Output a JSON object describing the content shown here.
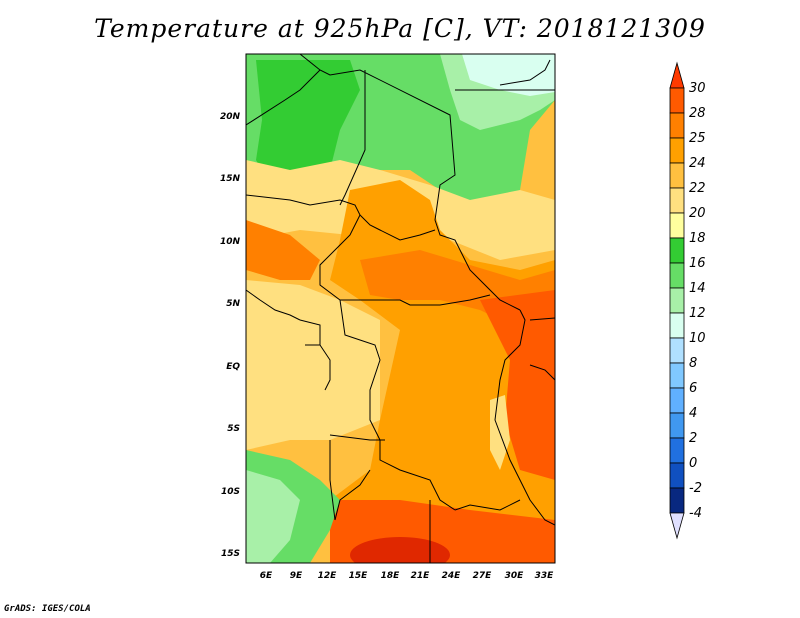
{
  "title": "Temperature at 925hPa [C], VT: 2018121309",
  "credit": "GrADS: IGES/COLA",
  "map": {
    "lon_labels": [
      "6E",
      "9E",
      "12E",
      "15E",
      "18E",
      "21E",
      "24E",
      "27E",
      "30E",
      "33E"
    ],
    "lat_labels": [
      "20N",
      "15N",
      "10N",
      "5N",
      "EQ",
      "5S",
      "10S",
      "15S"
    ]
  },
  "colorbar": {
    "labels": [
      "30",
      "28",
      "25",
      "24",
      "22",
      "20",
      "18",
      "16",
      "14",
      "12",
      "10",
      "8",
      "6",
      "4",
      "2",
      "0",
      "-2",
      "-4"
    ],
    "colors": [
      "#ff3a00",
      "#ff5a00",
      "#ff8000",
      "#ffa000",
      "#ffc040",
      "#ffe080",
      "#ffff9e",
      "#33cc33",
      "#66dd66",
      "#a8f0a8",
      "#d9fff0",
      "#b0e0ff",
      "#80c8ff",
      "#60b0ff",
      "#4098f0",
      "#2070e0",
      "#1050c0",
      "#082880",
      "#000060"
    ]
  }
}
